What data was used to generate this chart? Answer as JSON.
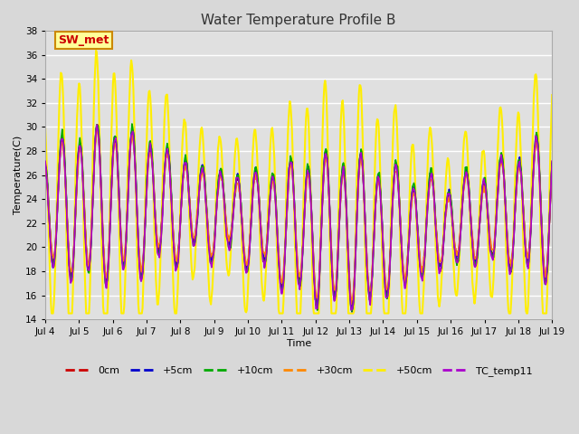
{
  "title": "Water Temperature Profile B",
  "xlabel": "Time",
  "ylabel": "Temperature(C)",
  "ylim": [
    14,
    38
  ],
  "yticks": [
    14,
    16,
    18,
    20,
    22,
    24,
    26,
    28,
    30,
    32,
    34,
    36,
    38
  ],
  "x_start_day": 4,
  "x_end_day": 19,
  "x_month": "Jul",
  "xtick_days": [
    4,
    5,
    6,
    7,
    8,
    9,
    10,
    11,
    12,
    13,
    14,
    15,
    16,
    17,
    18,
    19
  ],
  "series": {
    "0cm": {
      "color": "#cc0000",
      "lw": 1.2
    },
    "+5cm": {
      "color": "#0000cc",
      "lw": 1.2
    },
    "+10cm": {
      "color": "#00aa00",
      "lw": 1.2
    },
    "+30cm": {
      "color": "#ff8800",
      "lw": 1.2
    },
    "+50cm": {
      "color": "#ffee00",
      "lw": 1.5
    },
    "TC_temp11": {
      "color": "#aa00cc",
      "lw": 1.2
    }
  },
  "annotation_text": "SW_met",
  "annotation_color": "#cc0000",
  "annotation_bg": "#ffff99",
  "annotation_border": "#cc8800",
  "fig_bg_color": "#d8d8d8",
  "plot_bg": "#e0e0e0",
  "grid_color": "#ffffff",
  "title_fontsize": 11,
  "label_fontsize": 8,
  "tick_fontsize": 7.5,
  "legend_fontsize": 8
}
